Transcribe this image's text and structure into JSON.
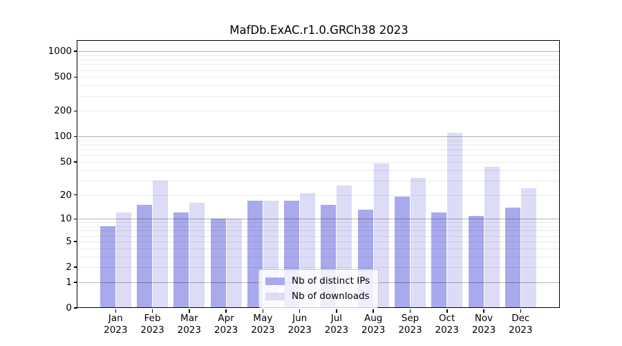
{
  "figure": {
    "background": "#ffffff"
  },
  "chart_data": {
    "type": "bar",
    "title": "MafDb.ExAC.r1.0.GRCh38 2023",
    "categories": [
      "Jan 2023",
      "Feb 2023",
      "Mar 2023",
      "Apr 2023",
      "May 2023",
      "Jun 2023",
      "Jul 2023",
      "Aug 2023",
      "Sep 2023",
      "Oct 2023",
      "Nov 2023",
      "Dec 2023"
    ],
    "series": [
      {
        "name": "Nb of distinct IPs",
        "color": "#a9a9ed",
        "values": [
          8,
          15,
          12,
          10,
          17,
          17,
          15,
          13,
          19,
          12,
          11,
          14
        ]
      },
      {
        "name": "Nb of downloads",
        "color": "#dcdcf7",
        "values": [
          12,
          30,
          16,
          10,
          17,
          21,
          26,
          48,
          32,
          110,
          44,
          24
        ]
      }
    ],
    "yscale": "log1p",
    "yticks": [
      0,
      1,
      2,
      5,
      10,
      20,
      50,
      100,
      200,
      500,
      1000
    ],
    "ylim": [
      0,
      1300
    ],
    "xlabel": "",
    "ylabel": "",
    "grid": "horizontal-major-and-minor",
    "legend_position": "lower-center-inside"
  },
  "colors": {
    "major_grid": "rgba(0,0,0,0.30)",
    "minor_grid": "rgba(0,0,0,0.08)",
    "spine": "#000000",
    "legend_border": "#cccccc",
    "legend_background": "rgba(255,255,255,0.8)"
  }
}
